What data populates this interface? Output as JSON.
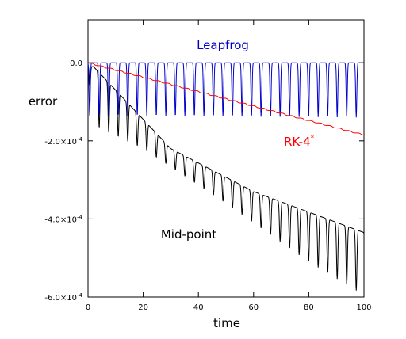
{
  "chart_data": {
    "type": "line",
    "xlabel": "time",
    "ylabel": "error",
    "xlim": [
      0,
      100
    ],
    "ylim": [
      -0.0006,
      0.00011
    ],
    "grid": false,
    "x_ticks": [
      "0",
      "20",
      "40",
      "60",
      "80",
      "100"
    ],
    "x_tick_values": [
      0,
      20,
      40,
      60,
      80,
      100
    ],
    "y_tick_values": [
      0,
      -0.0002,
      -0.0004,
      -0.0006
    ],
    "y_ticks": [
      {
        "mant": "0.0",
        "exp": ""
      },
      {
        "mant": "-2.0×10",
        "exp": "-4"
      },
      {
        "mant": "-4.0×10",
        "exp": "-4"
      },
      {
        "mant": "-6.0×10",
        "exp": "-4"
      }
    ],
    "series": [
      {
        "name": "Leapfrog",
        "color": "#0000cc",
        "kind": "dips",
        "period": 3.45,
        "phase": 0.6,
        "base": 0,
        "dip_depth": [
          -0.000135,
          -0.00014
        ]
      },
      {
        "name": "RK-4",
        "name_sup": "*",
        "color": "#ff0000",
        "kind": "steps",
        "period": 3.45,
        "phase": 0.6,
        "x": [
          0,
          100
        ],
        "y": [
          0,
          -0.000185
        ]
      },
      {
        "name": "Mid-point",
        "color": "#000000",
        "kind": "envelope",
        "period": 3.45,
        "phase": 0.6,
        "upper": [
          [
            2,
            -1e-05
          ],
          [
            10,
            -7e-05
          ],
          [
            30,
            -0.00022
          ],
          [
            60,
            -0.00033
          ],
          [
            100,
            -0.000435
          ]
        ],
        "lower": [
          [
            2,
            -0.00016
          ],
          [
            20,
            -0.00022
          ],
          [
            50,
            -0.00036
          ],
          [
            80,
            -0.00051
          ],
          [
            100,
            -0.000595
          ]
        ]
      }
    ]
  }
}
